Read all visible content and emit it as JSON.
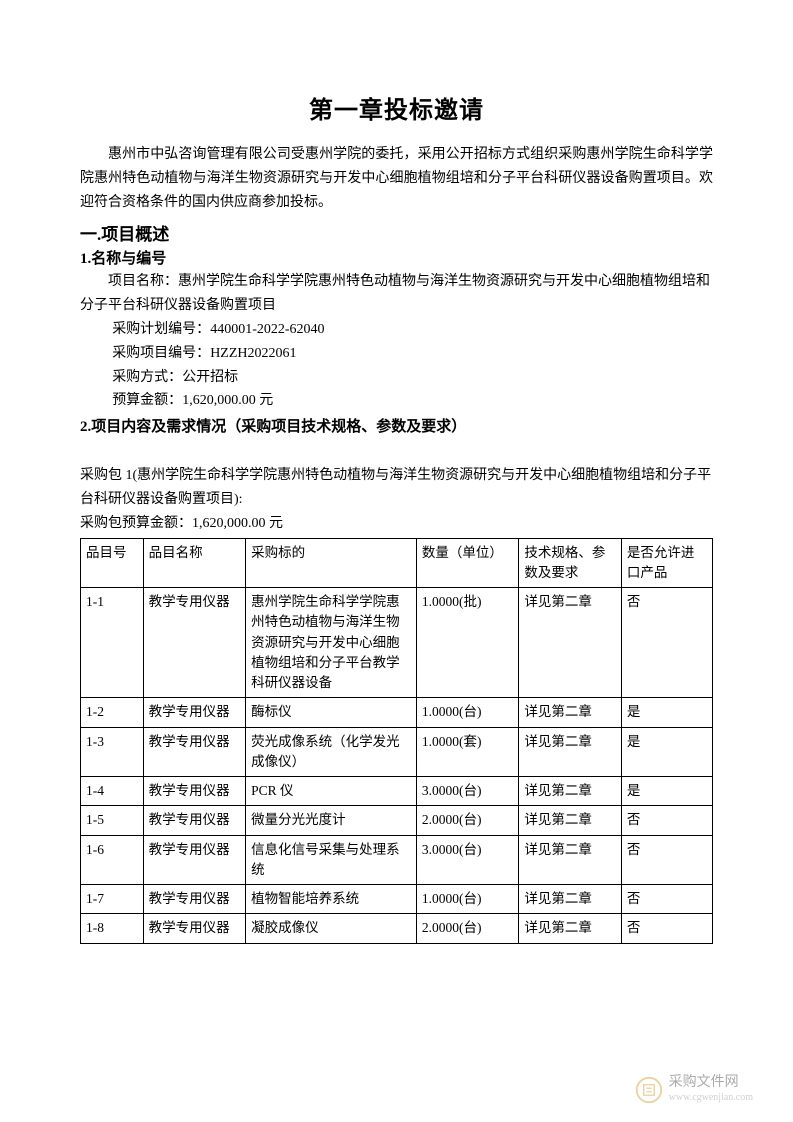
{
  "title": "第一章投标邀请",
  "intro": "惠州市中弘咨询管理有限公司受惠州学院的委托，采用公开招标方式组织采购惠州学院生命科学学院惠州特色动植物与海洋生物资源研究与开发中心细胞植物组培和分子平台科研仪器设备购置项目。欢迎符合资格条件的国内供应商参加投标。",
  "section1": {
    "heading": "一.项目概述",
    "sub1": {
      "heading": "1.名称与编号",
      "project_name_label": "项目名称：",
      "project_name": "惠州学院生命科学学院惠州特色动植物与海洋生物资源研究与开发中心细胞植物组培和分子平台科研仪器设备购置项目",
      "plan_no_label": "采购计划编号：",
      "plan_no": "440001-2022-62040",
      "proj_no_label": "采购项目编号：",
      "proj_no": "HZZH2022061",
      "method_label": "采购方式：",
      "method": "公开招标",
      "budget_label": "预算金额：",
      "budget": "1,620,000.00 元"
    },
    "sub2": {
      "heading": "2.项目内容及需求情况（采购项目技术规格、参数及要求）"
    }
  },
  "package": {
    "title": "采购包 1(惠州学院生命科学学院惠州特色动植物与海洋生物资源研究与开发中心细胞植物组培和分子平台科研仪器设备购置项目):",
    "budget_label": "采购包预算金额：",
    "budget": "1,620,000.00 元"
  },
  "table": {
    "headers": [
      "品目号",
      "品目名称",
      "采购标的",
      "数量（单位）",
      "技术规格、参数及要求",
      "是否允许进口产品"
    ],
    "rows": [
      [
        "1-1",
        "教学专用仪器",
        "惠州学院生命科学学院惠州特色动植物与海洋生物资源研究与开发中心细胞植物组培和分子平台教学科研仪器设备",
        "1.0000(批)",
        "详见第二章",
        "否"
      ],
      [
        "1-2",
        "教学专用仪器",
        "酶标仪",
        "1.0000(台)",
        "详见第二章",
        "是"
      ],
      [
        "1-3",
        "教学专用仪器",
        "荧光成像系统（化学发光成像仪）",
        "1.0000(套)",
        "详见第二章",
        "是"
      ],
      [
        "1-4",
        "教学专用仪器",
        "PCR 仪",
        "3.0000(台)",
        "详见第二章",
        "是"
      ],
      [
        "1-5",
        "教学专用仪器",
        "微量分光光度计",
        "2.0000(台)",
        "详见第二章",
        "否"
      ],
      [
        "1-6",
        "教学专用仪器",
        "信息化信号采集与处理系统",
        "3.0000(台)",
        "详见第二章",
        "否"
      ],
      [
        "1-7",
        "教学专用仪器",
        "植物智能培养系统",
        "1.0000(台)",
        "详见第二章",
        "否"
      ],
      [
        "1-8",
        "教学专用仪器",
        "凝胶成像仪",
        "2.0000(台)",
        "详见第二章",
        "否"
      ]
    ]
  },
  "watermark": {
    "main": "采购文件网",
    "sub": "www.cgwenjian.com",
    "icon_color": "#d9a94a"
  },
  "colors": {
    "text": "#000000",
    "background": "#ffffff",
    "border": "#000000"
  }
}
